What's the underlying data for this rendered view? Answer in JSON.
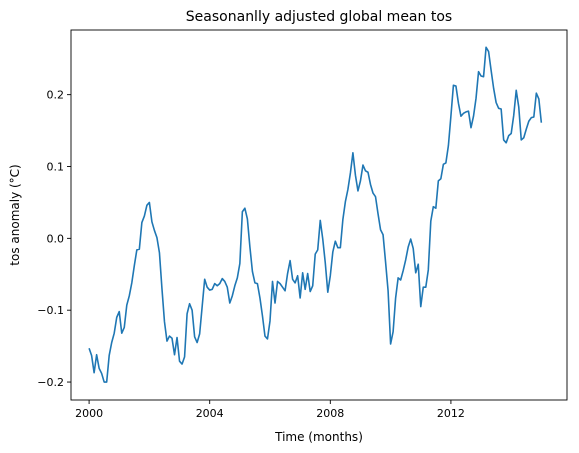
{
  "chart_data": {
    "type": "line",
    "title": "Seasonanlly adjusted global mean tos",
    "xlabel": "Time (months)",
    "ylabel": "tos anomaly (°C)",
    "xlim": [
      1999.4,
      2015.85
    ],
    "ylim": [
      -0.225,
      0.29
    ],
    "xticks": [
      2000,
      2004,
      2008,
      2012
    ],
    "xtick_labels": [
      "2000",
      "2004",
      "2008",
      "2012"
    ],
    "yticks": [
      -0.2,
      -0.1,
      0.0,
      0.1,
      0.2
    ],
    "ytick_labels": [
      "−0.2",
      "−0.1",
      "0.0",
      "0.1",
      "0.2"
    ],
    "grid": false,
    "line_color": "#1f77b4",
    "series": [
      {
        "x_start": 2000.0,
        "x_step": 0.08333,
        "values": [
          -0.153,
          -0.163,
          -0.187,
          -0.162,
          -0.181,
          -0.188,
          -0.2,
          -0.2,
          -0.163,
          -0.145,
          -0.132,
          -0.11,
          -0.102,
          -0.132,
          -0.124,
          -0.093,
          -0.08,
          -0.062,
          -0.038,
          -0.016,
          -0.015,
          0.022,
          0.031,
          0.046,
          0.05,
          0.023,
          0.011,
          0.001,
          -0.02,
          -0.07,
          -0.116,
          -0.143,
          -0.136,
          -0.139,
          -0.162,
          -0.138,
          -0.171,
          -0.175,
          -0.165,
          -0.105,
          -0.091,
          -0.1,
          -0.137,
          -0.145,
          -0.133,
          -0.095,
          -0.057,
          -0.068,
          -0.072,
          -0.071,
          -0.063,
          -0.066,
          -0.063,
          -0.056,
          -0.06,
          -0.068,
          -0.09,
          -0.08,
          -0.066,
          -0.055,
          -0.035,
          0.037,
          0.042,
          0.027,
          -0.012,
          -0.046,
          -0.062,
          -0.063,
          -0.083,
          -0.108,
          -0.136,
          -0.14,
          -0.115,
          -0.06,
          -0.09,
          -0.06,
          -0.063,
          -0.068,
          -0.073,
          -0.049,
          -0.031,
          -0.057,
          -0.062,
          -0.052,
          -0.083,
          -0.048,
          -0.071,
          -0.049,
          -0.074,
          -0.066,
          -0.022,
          -0.016,
          0.025,
          -0.001,
          -0.034,
          -0.075,
          -0.052,
          -0.019,
          -0.004,
          -0.013,
          -0.013,
          0.026,
          0.051,
          0.068,
          0.091,
          0.119,
          0.088,
          0.066,
          0.08,
          0.102,
          0.094,
          0.092,
          0.075,
          0.063,
          0.058,
          0.034,
          0.012,
          0.005,
          -0.033,
          -0.073,
          -0.147,
          -0.13,
          -0.083,
          -0.055,
          -0.058,
          -0.045,
          -0.03,
          -0.012,
          -0.001,
          -0.014,
          -0.048,
          -0.036,
          -0.095,
          -0.068,
          -0.068,
          -0.044,
          0.024,
          0.044,
          0.042,
          0.08,
          0.083,
          0.103,
          0.105,
          0.129,
          0.17,
          0.213,
          0.212,
          0.188,
          0.17,
          0.174,
          0.176,
          0.177,
          0.154,
          0.17,
          0.195,
          0.232,
          0.226,
          0.225,
          0.266,
          0.26,
          0.234,
          0.209,
          0.189,
          0.181,
          0.18,
          0.137,
          0.133,
          0.143,
          0.146,
          0.171,
          0.206,
          0.183,
          0.137,
          0.14,
          0.152,
          0.163,
          0.168,
          0.169,
          0.202,
          0.194,
          0.161
        ]
      }
    ]
  }
}
